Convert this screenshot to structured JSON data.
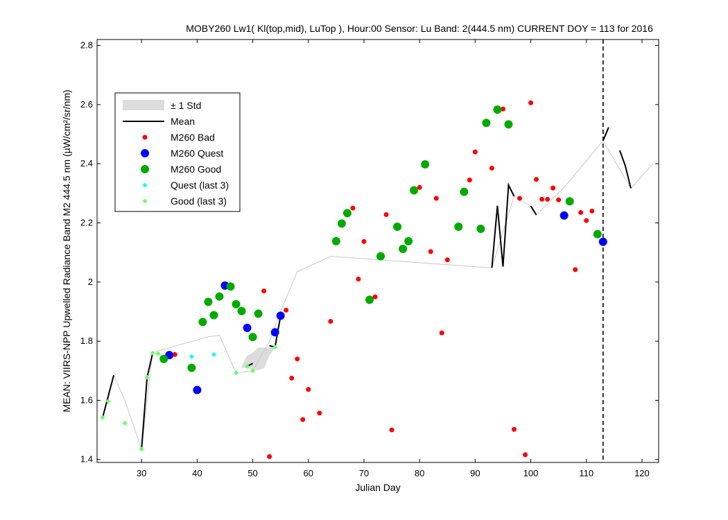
{
  "chart_data": {
    "type": "scatter",
    "title": "MOBY260   Lw1( Kl(top,mid), LuTop ),   Hour:00 Sensor: Lu Band: 2(444.5 nm)   CURRENT DOY = 113 for 2016",
    "xlabel": "Julian Day",
    "ylabel": "MEAN: VIIRS-NPP Upwelled Radiance Band M2 444.5 nm (µW/cm²/sr/nm)",
    "xlim": [
      22,
      123
    ],
    "ylim": [
      1.39,
      2.82
    ],
    "xticks": [
      30,
      40,
      50,
      60,
      70,
      80,
      90,
      100,
      110,
      120
    ],
    "yticks": [
      1.4,
      1.6,
      1.8,
      2,
      2.2,
      2.4,
      2.6,
      2.8
    ],
    "ytick_labels": [
      "1.4",
      "1.6",
      "1.8",
      "2",
      "2.2",
      "2.4",
      "2.6",
      "2.8"
    ],
    "grid": false,
    "legend_position": "top-left",
    "current_doy": 113,
    "legend": [
      {
        "label": "± 1 Std",
        "kind": "patch",
        "color": "#dcdcdc"
      },
      {
        "label": "Mean",
        "kind": "line",
        "color": "#000000"
      },
      {
        "label": "M260 Bad",
        "kind": "marker",
        "color": "#ff0000",
        "size": 3.5
      },
      {
        "label": "M260 Quest",
        "kind": "marker",
        "color": "#0000ff",
        "size": 6
      },
      {
        "label": "M260 Good",
        "kind": "marker",
        "color": "#00aa00",
        "size": 6
      },
      {
        "label": "Quest (last 3)",
        "kind": "diamond",
        "color": "#00ffff",
        "size": 3.5
      },
      {
        "label": "Good (last 3)",
        "kind": "diamond",
        "color": "#66ff66",
        "size": 3.5
      }
    ],
    "series": [
      {
        "name": "M260 Bad",
        "color": "#ff0000",
        "marker": "circle",
        "size": 3.5,
        "points": [
          [
            36,
            1.755
          ],
          [
            52,
            1.97
          ],
          [
            53,
            1.41
          ],
          [
            56,
            1.905
          ],
          [
            57,
            1.675
          ],
          [
            58,
            1.74
          ],
          [
            59,
            1.535
          ],
          [
            60,
            1.637
          ],
          [
            62,
            1.557
          ],
          [
            64,
            1.867
          ],
          [
            68,
            2.25
          ],
          [
            69,
            2.01
          ],
          [
            70,
            2.137
          ],
          [
            72,
            1.95
          ],
          [
            74,
            2.228
          ],
          [
            75,
            1.5
          ],
          [
            80,
            2.32
          ],
          [
            82,
            2.103
          ],
          [
            83,
            2.283
          ],
          [
            84,
            1.828
          ],
          [
            85,
            2.075
          ],
          [
            89,
            2.345
          ],
          [
            90,
            2.44
          ],
          [
            93,
            2.385
          ],
          [
            95,
            2.585
          ],
          [
            97,
            1.502
          ],
          [
            98,
            2.283
          ],
          [
            99,
            1.416
          ],
          [
            100,
            2.606
          ],
          [
            101,
            2.347
          ],
          [
            102,
            2.28
          ],
          [
            103,
            2.28
          ],
          [
            104,
            2.318
          ],
          [
            105,
            2.278
          ],
          [
            108,
            2.042
          ],
          [
            109,
            2.235
          ],
          [
            110,
            2.208
          ],
          [
            111,
            2.24
          ]
        ]
      },
      {
        "name": "M260 Quest",
        "color": "#0000ff",
        "marker": "circle",
        "size": 6,
        "points": [
          [
            35,
            1.753
          ],
          [
            40,
            1.635
          ],
          [
            45,
            1.988
          ],
          [
            49,
            1.845
          ],
          [
            54,
            1.83
          ],
          [
            55,
            1.886
          ],
          [
            106,
            2.225
          ],
          [
            113,
            2.136
          ]
        ]
      },
      {
        "name": "M260 Good",
        "color": "#00aa00",
        "marker": "circle",
        "size": 6,
        "points": [
          [
            34,
            1.74
          ],
          [
            39,
            1.71
          ],
          [
            41,
            1.865
          ],
          [
            42,
            1.933
          ],
          [
            43,
            1.888
          ],
          [
            44,
            1.951
          ],
          [
            46,
            1.985
          ],
          [
            47,
            1.925
          ],
          [
            48,
            1.902
          ],
          [
            50,
            1.814
          ],
          [
            51,
            1.893
          ],
          [
            65,
            2.138
          ],
          [
            66,
            2.198
          ],
          [
            67,
            2.233
          ],
          [
            71,
            1.94
          ],
          [
            73,
            2.087
          ],
          [
            76,
            2.187
          ],
          [
            77,
            2.112
          ],
          [
            78,
            2.138
          ],
          [
            79,
            2.31
          ],
          [
            81,
            2.398
          ],
          [
            87,
            2.187
          ],
          [
            88,
            2.305
          ],
          [
            91,
            2.18
          ],
          [
            92,
            2.538
          ],
          [
            94,
            2.583
          ],
          [
            96,
            2.533
          ],
          [
            107,
            2.273
          ],
          [
            112,
            2.162
          ]
        ]
      },
      {
        "name": "Quest (last 3)",
        "color": "#00ffff",
        "marker": "diamond",
        "size": 3.5,
        "points": [
          [
            39,
            1.748
          ],
          [
            43,
            1.755
          ]
        ]
      },
      {
        "name": "Good (last 3)",
        "color": "#66ff66",
        "marker": "diamond",
        "size": 3.5,
        "points": [
          [
            23,
            1.542
          ],
          [
            24,
            1.597
          ],
          [
            27,
            1.523
          ],
          [
            30,
            1.435
          ],
          [
            31,
            1.678
          ],
          [
            32,
            1.76
          ],
          [
            33,
            1.758
          ],
          [
            47,
            1.693
          ],
          [
            49,
            1.715
          ],
          [
            50,
            1.7
          ],
          [
            54,
            1.78
          ]
        ]
      }
    ],
    "mean_segments": [
      [
        [
          23,
          1.542
        ],
        [
          25,
          1.685
        ]
      ],
      [
        [
          30,
          1.435
        ],
        [
          31,
          1.678
        ],
        [
          32,
          1.76
        ]
      ],
      [
        [
          49,
          1.715
        ],
        [
          50,
          1.725
        ]
      ],
      [
        [
          53,
          1.785
        ],
        [
          54,
          1.78
        ],
        [
          55,
          1.885
        ]
      ],
      [
        [
          93,
          2.048
        ],
        [
          94,
          2.258
        ],
        [
          95,
          2.052
        ],
        [
          96,
          2.328
        ],
        [
          97,
          2.29
        ]
      ],
      [
        [
          100,
          2.257
        ],
        [
          101,
          2.227
        ]
      ],
      [
        [
          113,
          2.478
        ],
        [
          114,
          2.523
        ]
      ],
      [
        [
          116,
          2.445
        ],
        [
          117,
          2.393
        ],
        [
          118,
          2.317
        ]
      ]
    ],
    "gray_line": [
      [
        25,
        1.685
      ],
      [
        27,
        1.6
      ],
      [
        30,
        1.435
      ],
      [
        32,
        1.762
      ],
      [
        42,
        1.815
      ],
      [
        44,
        1.82
      ],
      [
        47,
        1.693
      ],
      [
        50,
        1.7
      ],
      [
        53,
        1.8
      ],
      [
        55,
        1.9
      ],
      [
        58,
        2.035
      ],
      [
        64,
        2.087
      ],
      [
        93,
        2.048
      ],
      [
        97,
        2.29
      ],
      [
        100,
        2.257
      ],
      [
        101,
        2.227
      ],
      [
        106,
        2.32
      ],
      [
        113,
        2.478
      ],
      [
        118,
        2.317
      ],
      [
        122,
        2.4
      ]
    ],
    "std_band": [
      [
        [
          49,
          1.75
        ],
        [
          50,
          1.76
        ],
        [
          51,
          1.777
        ],
        [
          53,
          1.777
        ],
        [
          54,
          1.78
        ],
        [
          53,
          1.755
        ],
        [
          52,
          1.71
        ],
        [
          51,
          1.703
        ],
        [
          50,
          1.705
        ],
        [
          49,
          1.71
        ],
        [
          48,
          1.712
        ]
      ]
    ]
  }
}
